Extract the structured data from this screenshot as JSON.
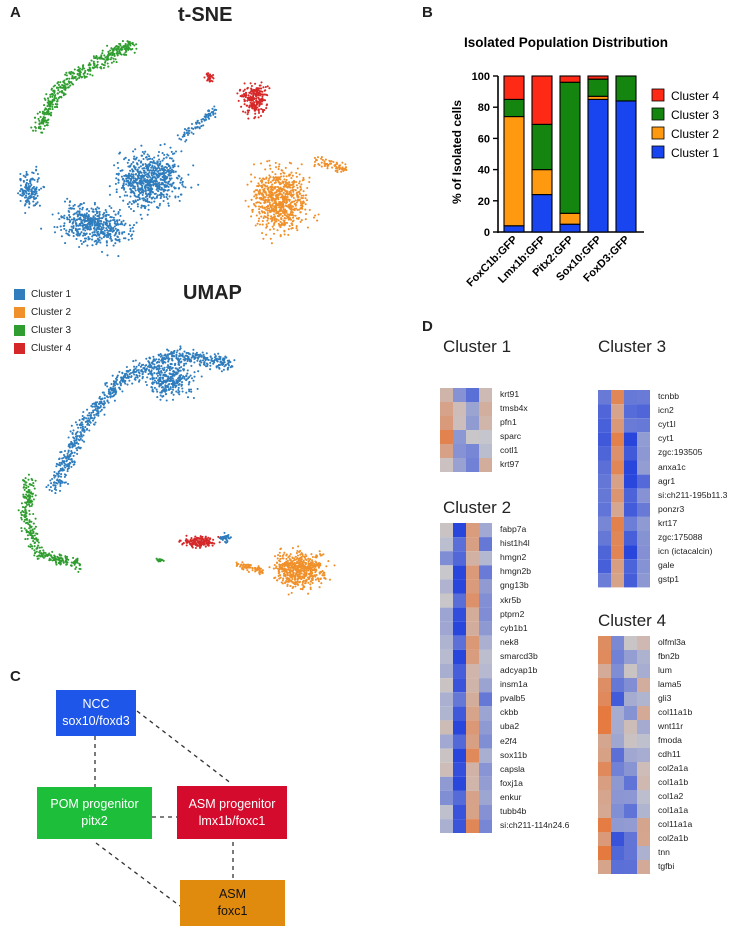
{
  "panels": {
    "a": "A",
    "b": "B",
    "c": "C",
    "d": "D"
  },
  "tsne_title": "t-SNE",
  "umap_title": "UMAP",
  "colors": {
    "c1": "#2f7dbd",
    "c2": "#f0902a",
    "c3": "#2f9d2f",
    "c4": "#d62728",
    "bar1": "#1845f0",
    "bar2": "#ff9a10",
    "bar3": "#14860f",
    "bar4": "#ff2a16"
  },
  "cluster_legend": [
    {
      "label": "Cluster 1",
      "color": "#2f7dbd"
    },
    {
      "label": "Cluster 2",
      "color": "#f0902a"
    },
    {
      "label": "Cluster 3",
      "color": "#2f9d2f"
    },
    {
      "label": "Cluster 4",
      "color": "#d62728"
    }
  ],
  "chart_data": [
    {
      "type": "bar",
      "stacked": true,
      "title": "Isolated Population Distribution",
      "ylabel": "% of Isolated cells",
      "xlabel": "",
      "ylim": [
        0,
        100
      ],
      "yticks": [
        0,
        20,
        40,
        60,
        80,
        100
      ],
      "categories": [
        "FoxC1b:GFP",
        "Lmx1b:GFP",
        "Pitx2:GFP",
        "Sox10:GFP",
        "FoxD3:GFP"
      ],
      "series": [
        {
          "name": "Cluster 1",
          "color": "#1845f0",
          "values": [
            4,
            24,
            5,
            85,
            84
          ]
        },
        {
          "name": "Cluster 2",
          "color": "#ff9a10",
          "values": [
            70,
            16,
            7,
            2,
            0
          ]
        },
        {
          "name": "Cluster 3",
          "color": "#14860f",
          "values": [
            11,
            29,
            84,
            11,
            16
          ]
        },
        {
          "name": "Cluster 4",
          "color": "#ff2a16",
          "values": [
            15,
            31,
            4,
            2,
            0
          ]
        }
      ],
      "legend_order": [
        "Cluster 4",
        "Cluster 3",
        "Cluster 2",
        "Cluster 1"
      ],
      "legend_position": "right"
    }
  ],
  "diagram": {
    "ncc": {
      "l1": "NCC",
      "l2": "sox10/foxd3",
      "color": "#1d56e8"
    },
    "pom": {
      "l1": "POM progenitor",
      "l2": "pitx2",
      "color": "#1dbf3a"
    },
    "asmp": {
      "l1": "ASM progenitor",
      "l2": "lmx1b/foxc1",
      "color": "#d40b2c"
    },
    "asm": {
      "l1": "ASM",
      "l2": "foxc1",
      "color": "#e08a0e"
    }
  },
  "heatmaps": {
    "c1": {
      "title": "Cluster 1",
      "genes": [
        "krt91",
        "tmsb4x",
        "pfn1",
        "sparc",
        "cotl1",
        "krt97"
      ]
    },
    "c2": {
      "title": "Cluster 2",
      "genes": [
        "fabp7a",
        "hist1h4l",
        "hmgn2",
        "hmgn2b",
        "gng13b",
        "xkr5b",
        "ptprn2",
        "cyb1b1",
        "nek8",
        "smarcd3b",
        "adcyap1b",
        "insm1a",
        "pvalb5",
        "ckbb",
        "uba2",
        "e2f4",
        "sox11b",
        "capsla",
        "foxj1a",
        "enkur",
        "tubb4b",
        "si:ch211-114n24.6"
      ]
    },
    "c3": {
      "title": "Cluster 3",
      "genes": [
        "tcnbb",
        "icn2",
        "cyt1l",
        "cyt1",
        "zgc:193505",
        "anxa1c",
        "agr1",
        "si:ch211-195b11.3",
        "ponzr3",
        "krt17",
        "zgc:175088",
        "icn (ictacalcin)",
        "gale",
        "gstp1"
      ]
    },
    "c4": {
      "title": "Cluster 4",
      "genes": [
        "olfml3a",
        "fbn2b",
        "lum",
        "lama5",
        "gli3",
        "col11a1b",
        "wnt11r",
        "fmoda",
        "cdh11",
        "col2a1a",
        "col1a1b",
        "col1a2",
        "col1a1a",
        "col11a1a",
        "col2a1b",
        "tnn",
        "tgfbi"
      ]
    }
  }
}
